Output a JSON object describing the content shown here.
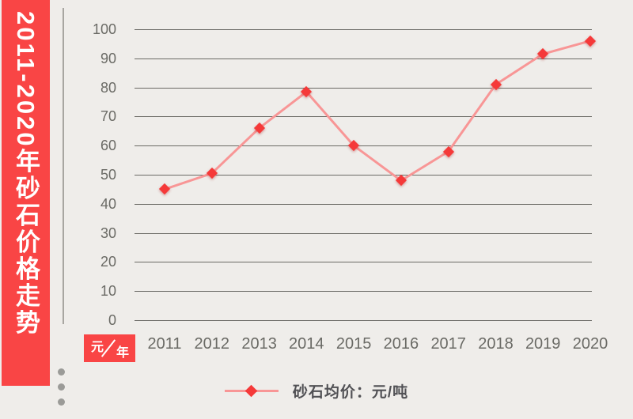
{
  "chart_data": {
    "type": "line",
    "title": "2011-2020年砂石价格走势",
    "categories": [
      "2011",
      "2012",
      "2013",
      "2014",
      "2015",
      "2016",
      "2017",
      "2018",
      "2019",
      "2020"
    ],
    "series": [
      {
        "name": "砂石均价：元/吨",
        "marker": "diamond",
        "values": [
          45,
          50.5,
          66,
          78.5,
          60,
          48,
          58,
          81,
          91.5,
          96
        ]
      }
    ],
    "y_unit": "元",
    "x_unit": "年",
    "ylim": [
      0,
      100
    ],
    "yticks": [
      0,
      10,
      20,
      30,
      40,
      50,
      60,
      70,
      80,
      90,
      100
    ],
    "grid": true,
    "legend_position": "bottom"
  },
  "decor": {
    "side_dots_count": 3
  },
  "colors": {
    "accent_red": "#f94545",
    "marker_red": "#f53939",
    "line_pink": "#f89696",
    "background": "#efedea",
    "gridline": "#6b6a65",
    "tick_text": "#6a6a65",
    "legend_text": "#515155"
  }
}
